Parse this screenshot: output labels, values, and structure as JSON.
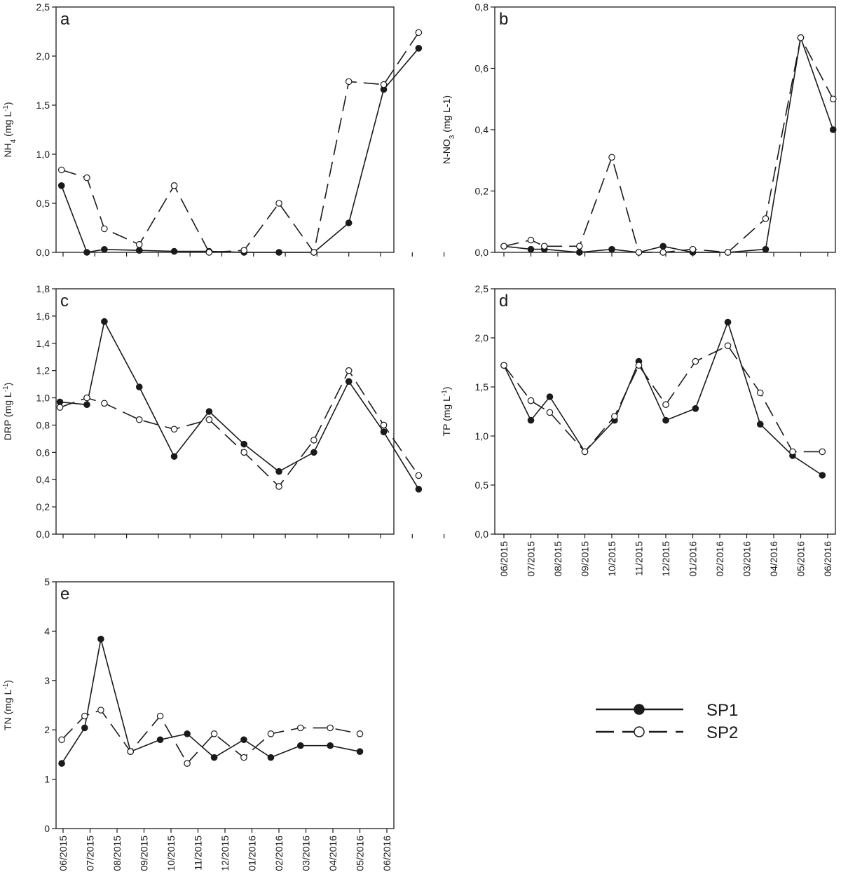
{
  "colors": {
    "ink": "#1a1a1a",
    "background": "#ffffff",
    "sp1_fill": "#1a1a1a",
    "sp2_fill": "#ffffff"
  },
  "legend": {
    "placement": "bottom-right",
    "entries": [
      {
        "key": "sp1",
        "label": "SP1",
        "line": "solid",
        "marker": "filled-circle"
      },
      {
        "key": "sp2",
        "label": "SP2",
        "line": "dashed",
        "marker": "open-circle"
      }
    ]
  },
  "x_tick_labels": [
    "06/2015",
    "07/2015",
    "08/2015",
    "09/2015",
    "10/2015",
    "11/2015",
    "12/2015",
    "01/2016",
    "02/2016",
    "03/2016",
    "04/2016",
    "05/2016",
    "06/2016"
  ],
  "chart_data": [
    {
      "id": "a",
      "type": "line",
      "panel_letter": "a",
      "ylabel_main": "NH",
      "ylabel_sub": "4",
      "ylabel_unit": " (mg L",
      "ylabel_sup": "-1",
      "ylabel_end": ")",
      "ylim": [
        0,
        2.5
      ],
      "yticks": [
        "0,0",
        "0,5",
        "1,0",
        "1,5",
        "2,0",
        "2,5"
      ],
      "ytick_values": [
        0,
        0.5,
        1.0,
        1.5,
        2.0,
        2.5
      ],
      "show_x_labels": false,
      "series": [
        {
          "key": "sp1",
          "x": [
            -0.05,
            0.75,
            1.3,
            2.4,
            3.5,
            4.6,
            5.7,
            6.8,
            7.9,
            9.0,
            10.1,
            11.2
          ],
          "values": [
            0.68,
            0.0,
            0.03,
            0.02,
            0.01,
            0.01,
            0.0,
            0.0,
            0.0,
            0.3,
            1.66,
            2.08
          ]
        },
        {
          "key": "sp2",
          "x": [
            -0.05,
            0.75,
            1.3,
            2.4,
            3.5,
            4.6,
            5.7,
            6.8,
            7.9,
            9.0,
            10.1,
            11.2
          ],
          "values": [
            0.84,
            0.76,
            0.24,
            0.08,
            0.68,
            0.0,
            0.02,
            0.5,
            0.0,
            1.74,
            1.71,
            2.24
          ]
        }
      ]
    },
    {
      "id": "b",
      "type": "line",
      "panel_letter": "b",
      "ylabel_main": "N-NO",
      "ylabel_sub": "3",
      "ylabel_unit": " (mg L-1)",
      "ylabel_sup": "",
      "ylabel_end": "",
      "ylim": [
        0,
        0.8
      ],
      "yticks": [
        "0,0",
        "0,2",
        "0,4",
        "0,6",
        "0,8"
      ],
      "ytick_values": [
        0,
        0.2,
        0.4,
        0.6,
        0.8
      ],
      "show_x_labels": false,
      "series": [
        {
          "key": "sp1",
          "x": [
            0.0,
            1.0,
            1.5,
            2.8,
            4.0,
            5.0,
            5.9,
            7.0,
            8.3,
            9.7,
            11.0,
            12.2
          ],
          "values": [
            0.02,
            0.01,
            0.01,
            0.0,
            0.01,
            0.0,
            0.02,
            0.0,
            0.0,
            0.01,
            0.7,
            0.4
          ]
        },
        {
          "key": "sp2",
          "x": [
            0.0,
            1.0,
            1.5,
            2.8,
            4.0,
            5.0,
            5.9,
            7.0,
            8.3,
            9.7,
            11.0,
            12.2
          ],
          "values": [
            0.02,
            0.04,
            0.02,
            0.02,
            0.31,
            0.0,
            0.0,
            0.01,
            0.0,
            0.11,
            0.7,
            0.5
          ]
        }
      ]
    },
    {
      "id": "c",
      "type": "line",
      "panel_letter": "c",
      "ylabel_main": "DRP",
      "ylabel_sub": "",
      "ylabel_unit": " (mg L",
      "ylabel_sup": "-1",
      "ylabel_end": ")",
      "ylim": [
        0,
        1.8
      ],
      "yticks": [
        "0,0",
        "0,2",
        "0,4",
        "0,6",
        "0,8",
        "1,0",
        "1,2",
        "1,4",
        "1,6",
        "1,8"
      ],
      "ytick_values": [
        0,
        0.2,
        0.4,
        0.6,
        0.8,
        1.0,
        1.2,
        1.4,
        1.6,
        1.8
      ],
      "show_x_labels": false,
      "series": [
        {
          "key": "sp1",
          "x": [
            -0.1,
            0.75,
            1.3,
            2.4,
            3.5,
            4.6,
            5.7,
            6.8,
            7.9,
            9.0,
            10.1,
            11.2
          ],
          "values": [
            0.97,
            0.95,
            1.56,
            1.08,
            0.57,
            0.9,
            0.66,
            0.46,
            0.6,
            1.12,
            0.75,
            0.33
          ]
        },
        {
          "key": "sp2",
          "x": [
            -0.1,
            0.75,
            1.3,
            2.4,
            3.5,
            4.6,
            5.7,
            6.8,
            7.9,
            9.0,
            10.1,
            11.2
          ],
          "values": [
            0.93,
            1.0,
            0.96,
            0.84,
            0.77,
            0.84,
            0.6,
            0.35,
            0.69,
            1.2,
            0.8,
            0.43
          ]
        }
      ]
    },
    {
      "id": "d",
      "type": "line",
      "panel_letter": "d",
      "ylabel_main": "TP",
      "ylabel_sub": "",
      "ylabel_unit": "  (mg L",
      "ylabel_sup": "-1",
      "ylabel_end": ")",
      "ylim": [
        0,
        2.5
      ],
      "yticks": [
        "0,0",
        "0,5",
        "1,0",
        "1,5",
        "2,0",
        "2,5"
      ],
      "ytick_values": [
        0,
        0.5,
        1.0,
        1.5,
        2.0,
        2.5
      ],
      "show_x_labels": true,
      "series": [
        {
          "key": "sp1",
          "x": [
            0.0,
            1.0,
            1.7,
            3.0,
            4.1,
            5.0,
            6.0,
            7.1,
            8.3,
            9.5,
            10.7,
            11.8
          ],
          "values": [
            1.72,
            1.16,
            1.4,
            0.84,
            1.16,
            1.76,
            1.16,
            1.28,
            2.16,
            1.12,
            0.8,
            0.6
          ]
        },
        {
          "key": "sp2",
          "x": [
            0.0,
            1.0,
            1.7,
            3.0,
            4.1,
            5.0,
            6.0,
            7.1,
            8.3,
            9.5,
            10.7,
            11.8
          ],
          "values": [
            1.72,
            1.36,
            1.24,
            0.84,
            1.2,
            1.72,
            1.32,
            1.76,
            1.92,
            1.44,
            0.84,
            0.84
          ]
        }
      ]
    },
    {
      "id": "e",
      "type": "line",
      "panel_letter": "e",
      "ylabel_main": "TN",
      "ylabel_sub": "",
      "ylabel_unit": " (mg L",
      "ylabel_sup": "-1",
      "ylabel_end": ")",
      "ylim": [
        0,
        5
      ],
      "yticks": [
        "0",
        "1",
        "2",
        "3",
        "4",
        "5"
      ],
      "ytick_values": [
        0,
        1,
        2,
        3,
        4,
        5
      ],
      "show_x_labels": true,
      "series": [
        {
          "key": "sp1",
          "x": [
            -0.05,
            0.8,
            1.4,
            2.5,
            3.6,
            4.6,
            5.6,
            6.7,
            7.7,
            8.8,
            9.9,
            11.0
          ],
          "values": [
            1.32,
            2.04,
            3.84,
            1.56,
            1.8,
            1.92,
            1.44,
            1.8,
            1.44,
            1.68,
            1.68,
            1.56
          ]
        },
        {
          "key": "sp2",
          "x": [
            -0.05,
            0.8,
            1.4,
            2.5,
            3.6,
            4.6,
            5.6,
            6.7,
            7.7,
            8.8,
            9.9,
            11.0
          ],
          "values": [
            1.8,
            2.28,
            2.4,
            1.56,
            2.28,
            1.32,
            1.92,
            1.44,
            1.92,
            2.04,
            2.04,
            1.92
          ]
        }
      ]
    }
  ]
}
